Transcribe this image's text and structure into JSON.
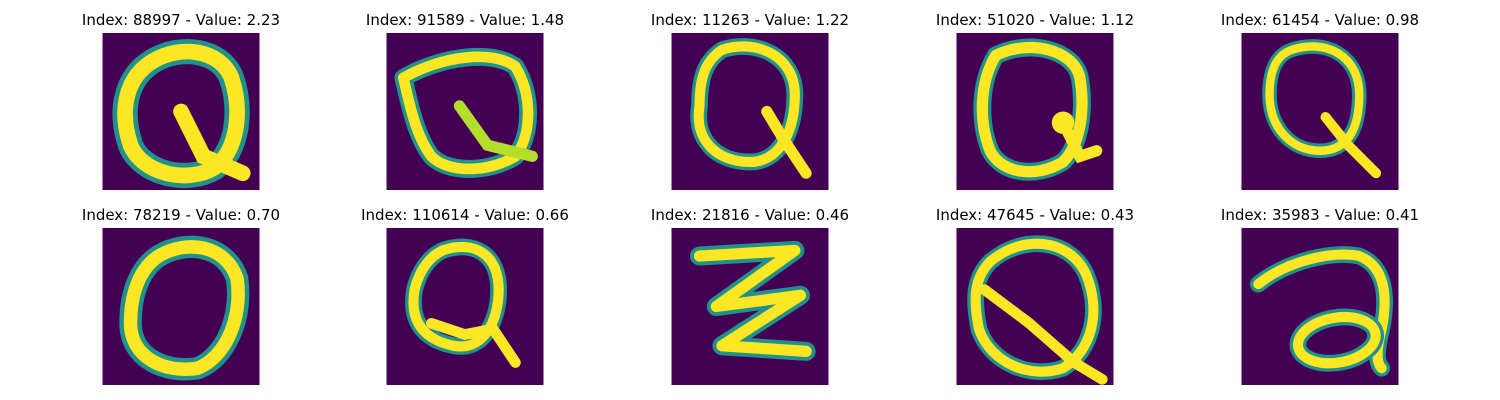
{
  "figure": {
    "colormap": "viridis",
    "background_color": "#440154",
    "stroke_colors": [
      "#21918c",
      "#5ec962",
      "#b5de2b",
      "#fde725"
    ],
    "panels": [
      {
        "title": "Index: 88997 - Value: 2.23",
        "glyph": "Q"
      },
      {
        "title": "Index: 91589 - Value: 1.48",
        "glyph": "Q"
      },
      {
        "title": "Index: 11263 - Value: 1.22",
        "glyph": "Q"
      },
      {
        "title": "Index: 51020 - Value: 1.12",
        "glyph": "Q"
      },
      {
        "title": "Index: 61454 - Value: 0.98",
        "glyph": "Q"
      },
      {
        "title": "Index: 78219 - Value: 0.70",
        "glyph": "O"
      },
      {
        "title": "Index: 110614 - Value: 0.66",
        "glyph": "Q"
      },
      {
        "title": "Index: 21816 - Value: 0.46",
        "glyph": "Z"
      },
      {
        "title": "Index: 47645 - Value: 0.43",
        "glyph": "Q"
      },
      {
        "title": "Index: 35983 - Value: 0.41",
        "glyph": "a"
      }
    ]
  }
}
